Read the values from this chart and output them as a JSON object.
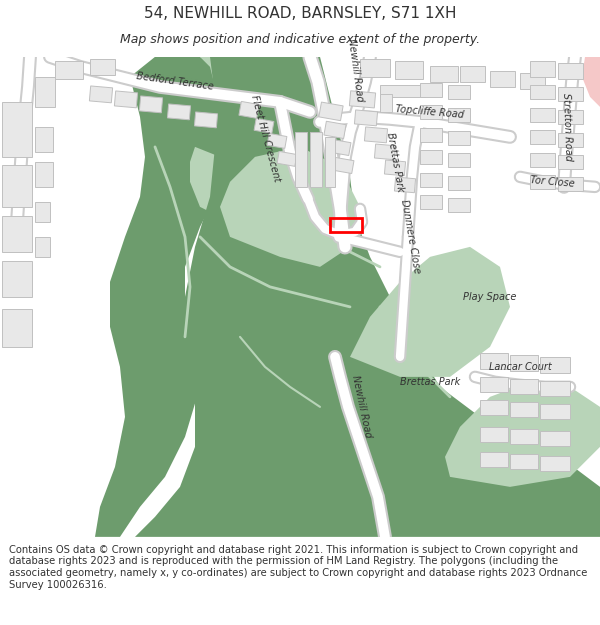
{
  "title": "54, NEWHILL ROAD, BARNSLEY, S71 1XH",
  "subtitle": "Map shows position and indicative extent of the property.",
  "footer": "Contains OS data © Crown copyright and database right 2021. This information is subject to Crown copyright and database rights 2023 and is reproduced with the permission of HM Land Registry. The polygons (including the associated geometry, namely x, y co-ordinates) are subject to Crown copyright and database rights 2023 Ordnance Survey 100026316.",
  "map_bg": "#f5f3f0",
  "road_color": "#ffffff",
  "road_outline": "#cccccc",
  "building_fill": "#e8e8e8",
  "building_outline": "#c0c0c0",
  "green_dark": "#6d9c6d",
  "green_light": "#b8d4b8",
  "highlight_color": "#ff0000",
  "text_color": "#333333",
  "pink_area": "#f5c8c8",
  "title_fontsize": 11,
  "subtitle_fontsize": 9,
  "footer_fontsize": 7.2
}
